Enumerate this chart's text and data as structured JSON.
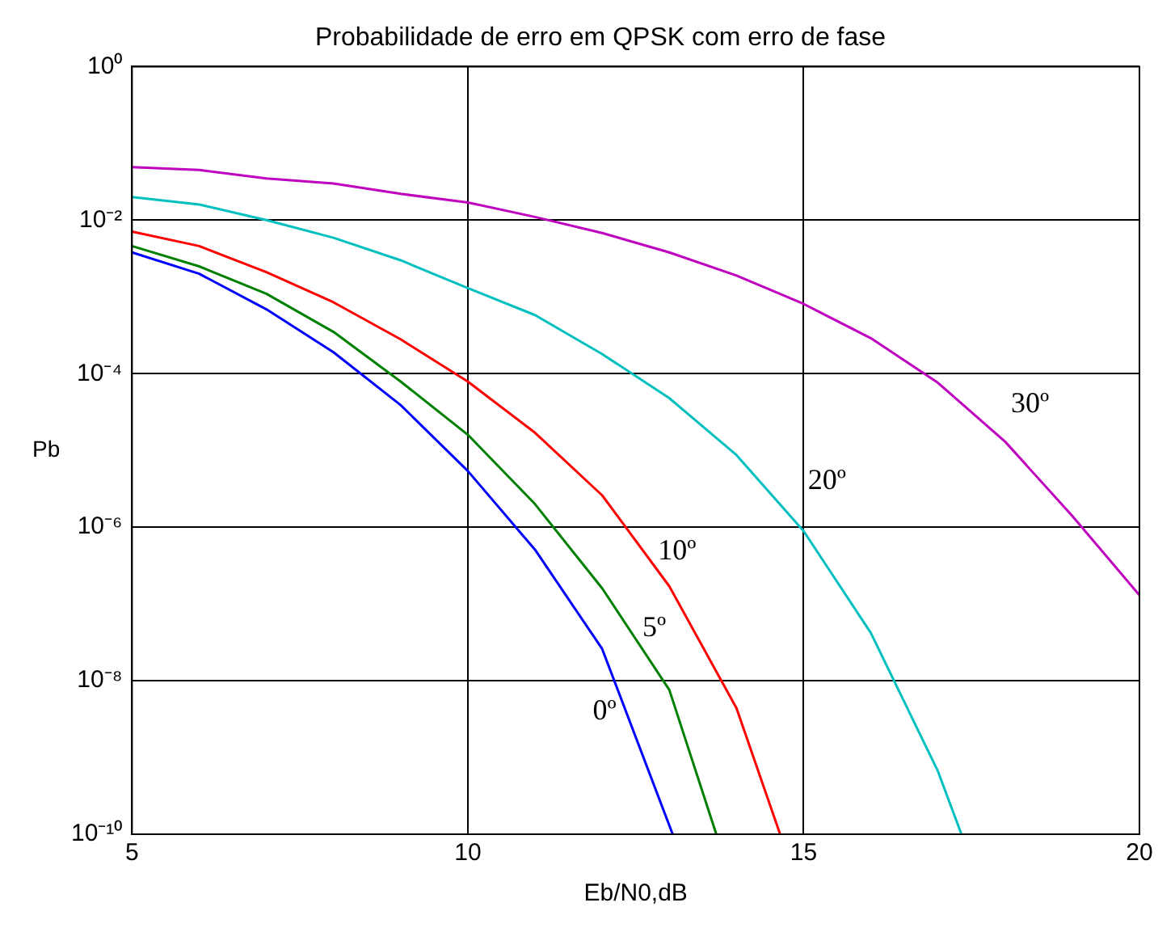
{
  "chart_data": {
    "type": "line",
    "title": "Probabilidade de erro em QPSK com erro de fase",
    "xlabel": "Eb/N0,dB",
    "ylabel": "Pb",
    "log": "y",
    "grid": true,
    "legend": false,
    "marker": "none",
    "line_style": "solid",
    "xlim": [
      5,
      20
    ],
    "xticks": [
      5,
      10,
      15,
      20
    ],
    "ylim": [
      1e-10,
      1
    ],
    "yticks": [
      {
        "value": 1,
        "label": "10⁰"
      },
      {
        "value": 0.01,
        "label": "10⁻²"
      },
      {
        "value": 0.0001,
        "label": "10⁻⁴"
      },
      {
        "value": 1e-06,
        "label": "10⁻⁶"
      },
      {
        "value": 1e-08,
        "label": "10⁻⁸"
      },
      {
        "value": 1e-10,
        "label": "10⁻¹⁰"
      }
    ],
    "series": [
      {
        "name": "0º",
        "color": "#0000ff",
        "x": [
          5,
          6,
          7,
          8,
          9,
          10,
          11,
          12,
          13.05
        ],
        "values": [
          0.0038,
          0.002,
          0.00069,
          0.00019,
          3.9e-05,
          5.4e-06,
          5.1e-07,
          2.6e-08,
          1e-10
        ]
      },
      {
        "name": "5º",
        "color": "#008000",
        "x": [
          5,
          6,
          7,
          8,
          9,
          10,
          11,
          12,
          13,
          13.7
        ],
        "values": [
          0.0046,
          0.0025,
          0.0011,
          0.00035,
          7.9e-05,
          1.6e-05,
          2e-06,
          1.6e-07,
          7.6e-09,
          1e-10
        ]
      },
      {
        "name": "10º",
        "color": "#ff0000",
        "x": [
          5,
          6,
          7,
          8,
          9,
          10,
          11,
          12,
          13,
          14,
          14.65
        ],
        "values": [
          0.0071,
          0.0046,
          0.0021,
          0.00085,
          0.00028,
          7.9e-05,
          1.7e-05,
          2.6e-06,
          1.7e-07,
          4.4e-09,
          1e-10
        ]
      },
      {
        "name": "20º",
        "color": "#00bfbf",
        "x": [
          5,
          6,
          7,
          8,
          9,
          10,
          11,
          12,
          13,
          14,
          15,
          16,
          17,
          17.35
        ],
        "values": [
          0.02,
          0.016,
          0.01,
          0.0059,
          0.003,
          0.0013,
          0.00058,
          0.00018,
          4.8e-05,
          8.7e-06,
          8.9e-07,
          4.2e-08,
          6.6e-10,
          1e-10
        ]
      },
      {
        "name": "30º",
        "color": "#bf00bf",
        "x": [
          5,
          6,
          7,
          8,
          9,
          10,
          11,
          12,
          13,
          14,
          15,
          16,
          17,
          18,
          19,
          20
        ],
        "values": [
          0.049,
          0.045,
          0.035,
          0.03,
          0.022,
          0.017,
          0.011,
          0.0068,
          0.0038,
          0.0019,
          0.00081,
          0.00029,
          7.6e-05,
          1.3e-05,
          1.4e-06,
          1.3e-07
        ]
      }
    ]
  }
}
